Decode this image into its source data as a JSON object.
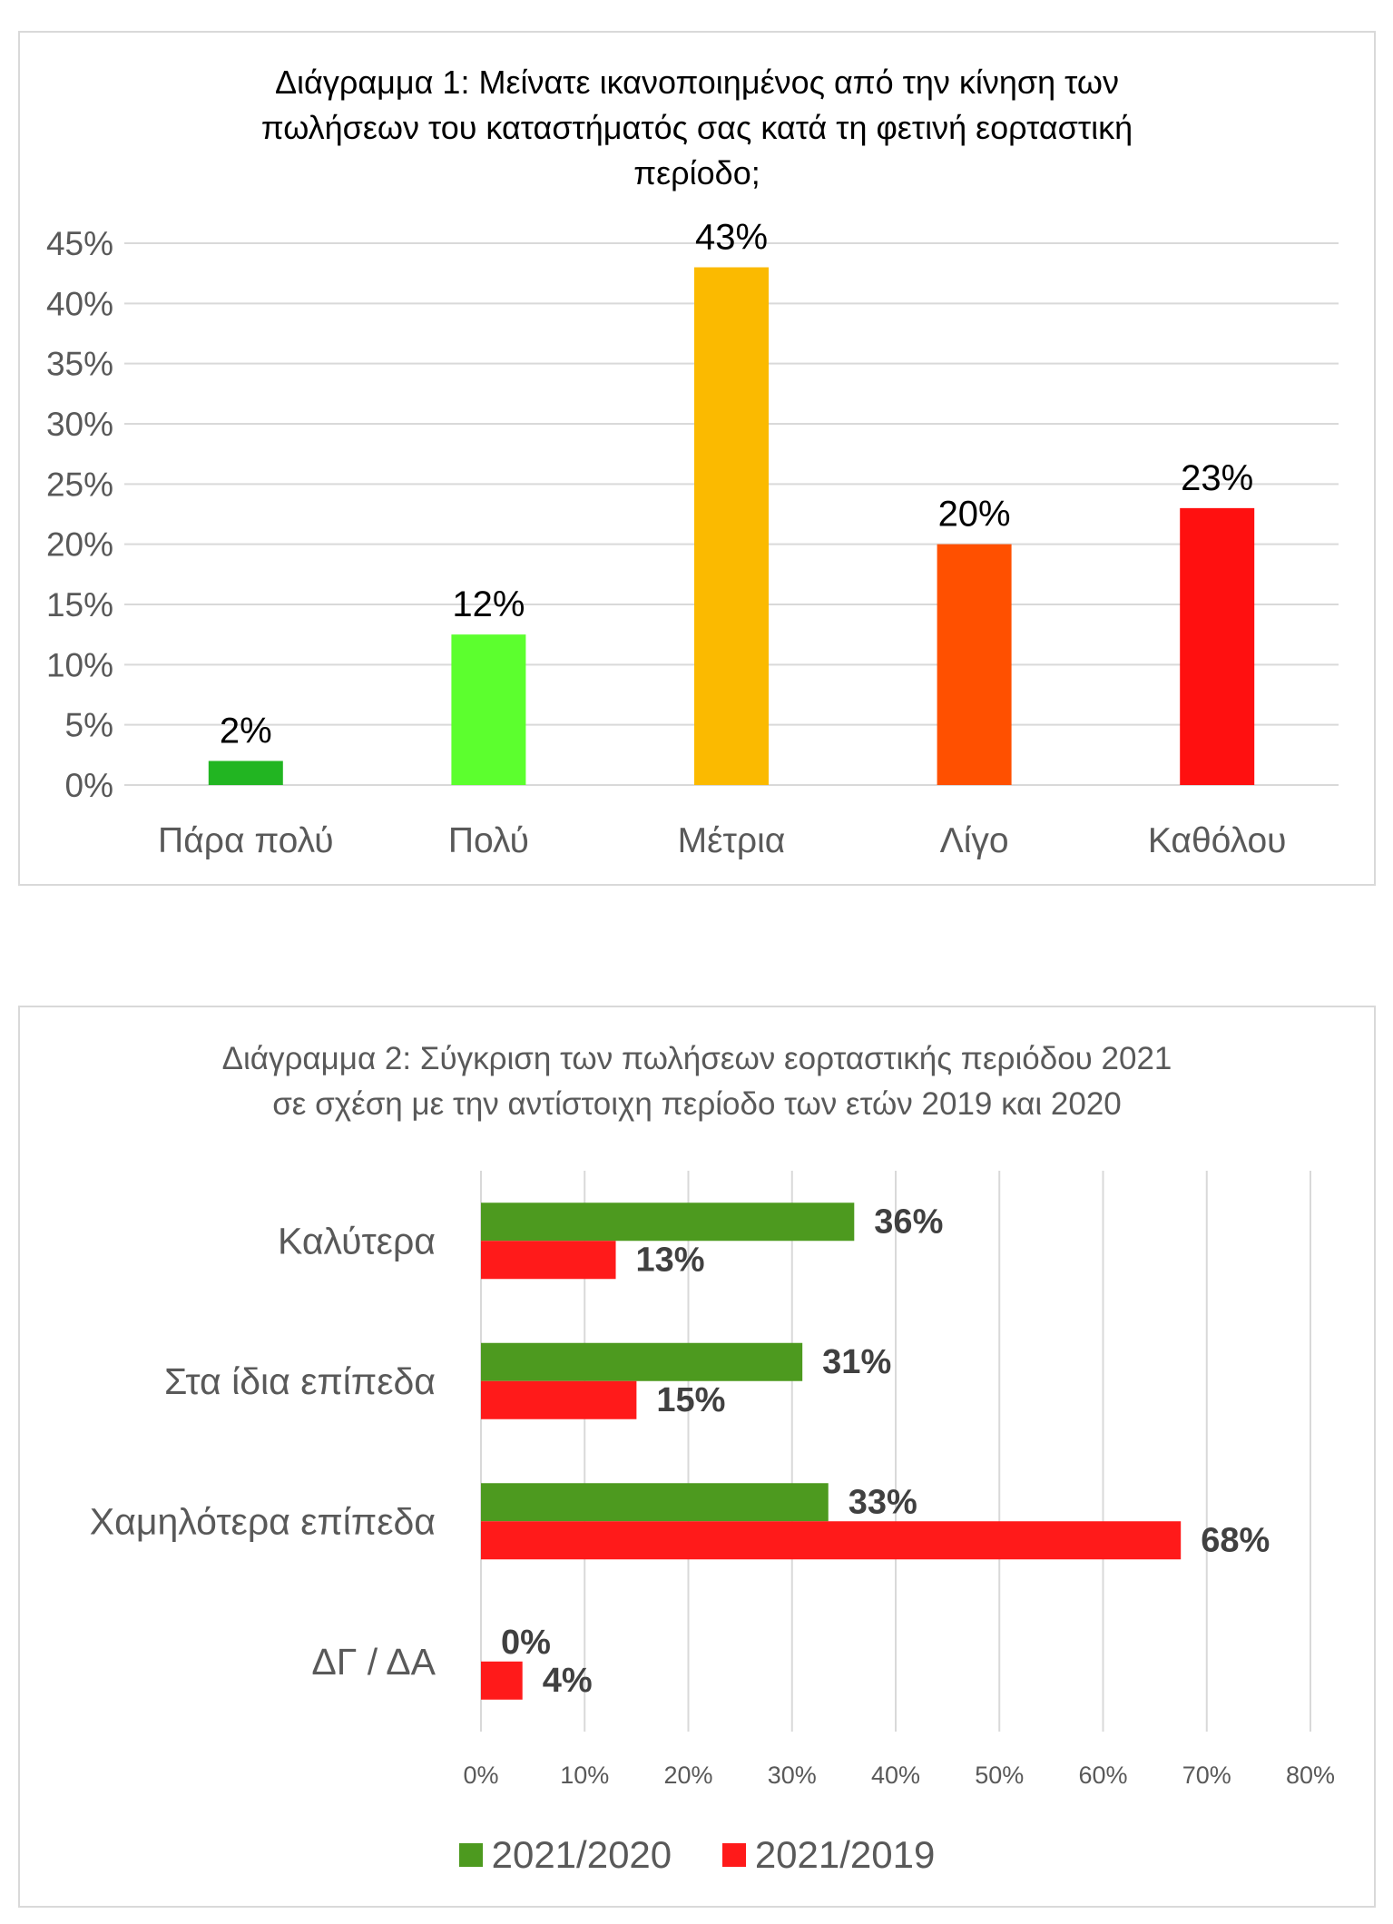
{
  "chart_data": [
    {
      "type": "bar",
      "title": "Διάγραμμα 1: Μείνατε ικανοποιημένος από την κίνηση των πωλήσεων του καταστήματός σας κατά τη φετινή εορταστική περίοδο;",
      "categories": [
        "Πάρα πολύ",
        "Πολύ",
        "Μέτρια",
        "Λίγο",
        "Καθόλου"
      ],
      "values": [
        2,
        12.5,
        43,
        20,
        23
      ],
      "value_labels": [
        "2%",
        "12%",
        "43%",
        "20%",
        "23%"
      ],
      "bar_colors": [
        "#22b522",
        "#5cff2e",
        "#fbba00",
        "#ff5000",
        "#ff1010"
      ],
      "ylim": [
        0,
        45
      ],
      "yticks": [
        "0%",
        "5%",
        "10%",
        "15%",
        "20%",
        "25%",
        "30%",
        "35%",
        "40%",
        "45%"
      ],
      "grid": true
    },
    {
      "type": "bar",
      "orientation": "horizontal",
      "title": "Διάγραμμα 2: Σύγκριση των πωλήσεων εορταστικής περιόδου 2021 σε σχέση με την αντίστοιχη περίοδο των ετών 2019 και 2020",
      "categories": [
        "Καλύτερα",
        "Στα ίδια επίπεδα",
        "Χαμηλότερα επίπεδα",
        "ΔΓ / ΔΑ"
      ],
      "series": [
        {
          "name": "2021/2020",
          "color": "#4d9a1f",
          "values": [
            36,
            31,
            33.5,
            0
          ],
          "labels": [
            "36%",
            "31%",
            "33%",
            "0%"
          ]
        },
        {
          "name": "2021/2019",
          "color": "#ff1a1a",
          "values": [
            13,
            15,
            67.5,
            4
          ],
          "labels": [
            "13%",
            "15%",
            "68%",
            "4%"
          ]
        }
      ],
      "xlim": [
        0,
        80
      ],
      "xticks": [
        "0%",
        "10%",
        "20%",
        "30%",
        "40%",
        "50%",
        "60%",
        "70%",
        "80%"
      ],
      "grid": true,
      "legend": "bottom"
    }
  ]
}
